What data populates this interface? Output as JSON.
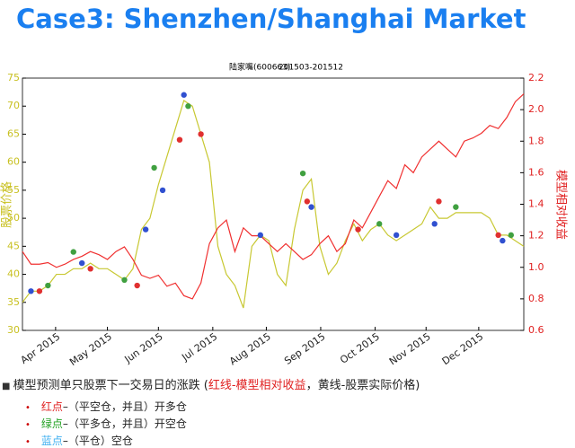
{
  "header": {
    "title": "Case3: Shenzhen/Shanghai Market"
  },
  "chart_data": {
    "type": "line",
    "title": "陆家嘴(600663)",
    "subtitle": "201503-201512",
    "y_label": "股票价格",
    "y2_label": "模型相对收益",
    "xlim": [
      0,
      59
    ],
    "xticks": [
      {
        "value": 3.9,
        "label": "Apr 2015"
      },
      {
        "value": 10.0,
        "label": "May 2015"
      },
      {
        "value": 16.0,
        "label": "Jun 2015"
      },
      {
        "value": 22.4,
        "label": "Jul 2015"
      },
      {
        "value": 28.7,
        "label": "Aug 2015"
      },
      {
        "value": 35.1,
        "label": "Sep 2015"
      },
      {
        "value": 41.5,
        "label": "Oct 2015"
      },
      {
        "value": 47.5,
        "label": "Nov 2015"
      },
      {
        "value": 53.7,
        "label": "Dec 2015"
      }
    ],
    "ylim": [
      30,
      75
    ],
    "yticks": [
      30,
      35,
      40,
      45,
      50,
      55,
      60,
      65,
      70,
      75
    ],
    "ytick_color": "#c8c020",
    "y2lim": [
      0.6,
      2.2
    ],
    "y2ticks": [
      0.6,
      0.8,
      {
        "value": 1.0,
        "label": "1.0"
      },
      1.2,
      1.4,
      1.6,
      1.8,
      {
        "value": 2.0,
        "label": "2.0"
      },
      2.2
    ],
    "y2tick_color": "#e02020",
    "series": [
      {
        "color": "#c8c832",
        "values": [
          35,
          37,
          37,
          38,
          40,
          40,
          41,
          41,
          42,
          41,
          41,
          40,
          39,
          41,
          48,
          50,
          56,
          61,
          66,
          71,
          70,
          65,
          60,
          45,
          40,
          38,
          34,
          45,
          47,
          46,
          40,
          38,
          48,
          55,
          57,
          45,
          40,
          42,
          46,
          49,
          46,
          48,
          49,
          47,
          46,
          47,
          48,
          49,
          52,
          50,
          50,
          51,
          51,
          51,
          51,
          50,
          47,
          47,
          46,
          45
        ]
      },
      {
        "color": "#f03030",
        "axis": "y2",
        "values": [
          1.1,
          1.02,
          1.02,
          1.03,
          1.0,
          1.02,
          1.05,
          1.07,
          1.1,
          1.08,
          1.05,
          1.1,
          1.13,
          1.05,
          0.95,
          0.93,
          0.95,
          0.88,
          0.9,
          0.82,
          0.8,
          0.9,
          1.15,
          1.25,
          1.3,
          1.1,
          1.25,
          1.2,
          1.2,
          1.15,
          1.1,
          1.15,
          1.1,
          1.05,
          1.08,
          1.15,
          1.2,
          1.1,
          1.15,
          1.3,
          1.25,
          1.35,
          1.45,
          1.55,
          1.5,
          1.65,
          1.6,
          1.7,
          1.75,
          1.8,
          1.75,
          1.7,
          1.8,
          1.82,
          1.85,
          1.9,
          1.88,
          1.95,
          2.05,
          2.1
        ]
      }
    ],
    "markers": [
      {
        "color": "#e03030",
        "x": [
          2,
          8,
          13.5,
          18.5,
          21,
          33.5,
          39.5,
          49,
          56
        ],
        "values": [
          37,
          41,
          38,
          64,
          65,
          53,
          48,
          53,
          47
        ]
      },
      {
        "color": "#40a040",
        "x": [
          3,
          6,
          12,
          15.5,
          19.5,
          33,
          42,
          51,
          57.5
        ],
        "values": [
          38,
          44,
          39,
          59,
          70,
          58,
          49,
          52,
          47
        ]
      },
      {
        "color": "#3050d0",
        "x": [
          1,
          7,
          14.5,
          16.5,
          19,
          28,
          34,
          44,
          48.5,
          56.5
        ],
        "values": [
          37,
          42,
          48,
          55,
          72,
          47,
          52,
          47,
          49,
          46
        ]
      }
    ]
  },
  "notes": {
    "line1": {
      "intro": "模型预测单只股票下一交易日的涨跌 (",
      "red": "红线-模型相对收益",
      "rest": "，黄线-股票实际价格)"
    },
    "items": [
      {
        "label": "红点",
        "text": "–（平空仓，并且）开多仓",
        "color": "#e02020"
      },
      {
        "label": "绿点",
        "text": "–（平多仓，并且）开空仓",
        "color": "#20a020"
      },
      {
        "label": "蓝点",
        "text": "–（平仓）空仓",
        "color": "#40b0f0"
      }
    ]
  }
}
